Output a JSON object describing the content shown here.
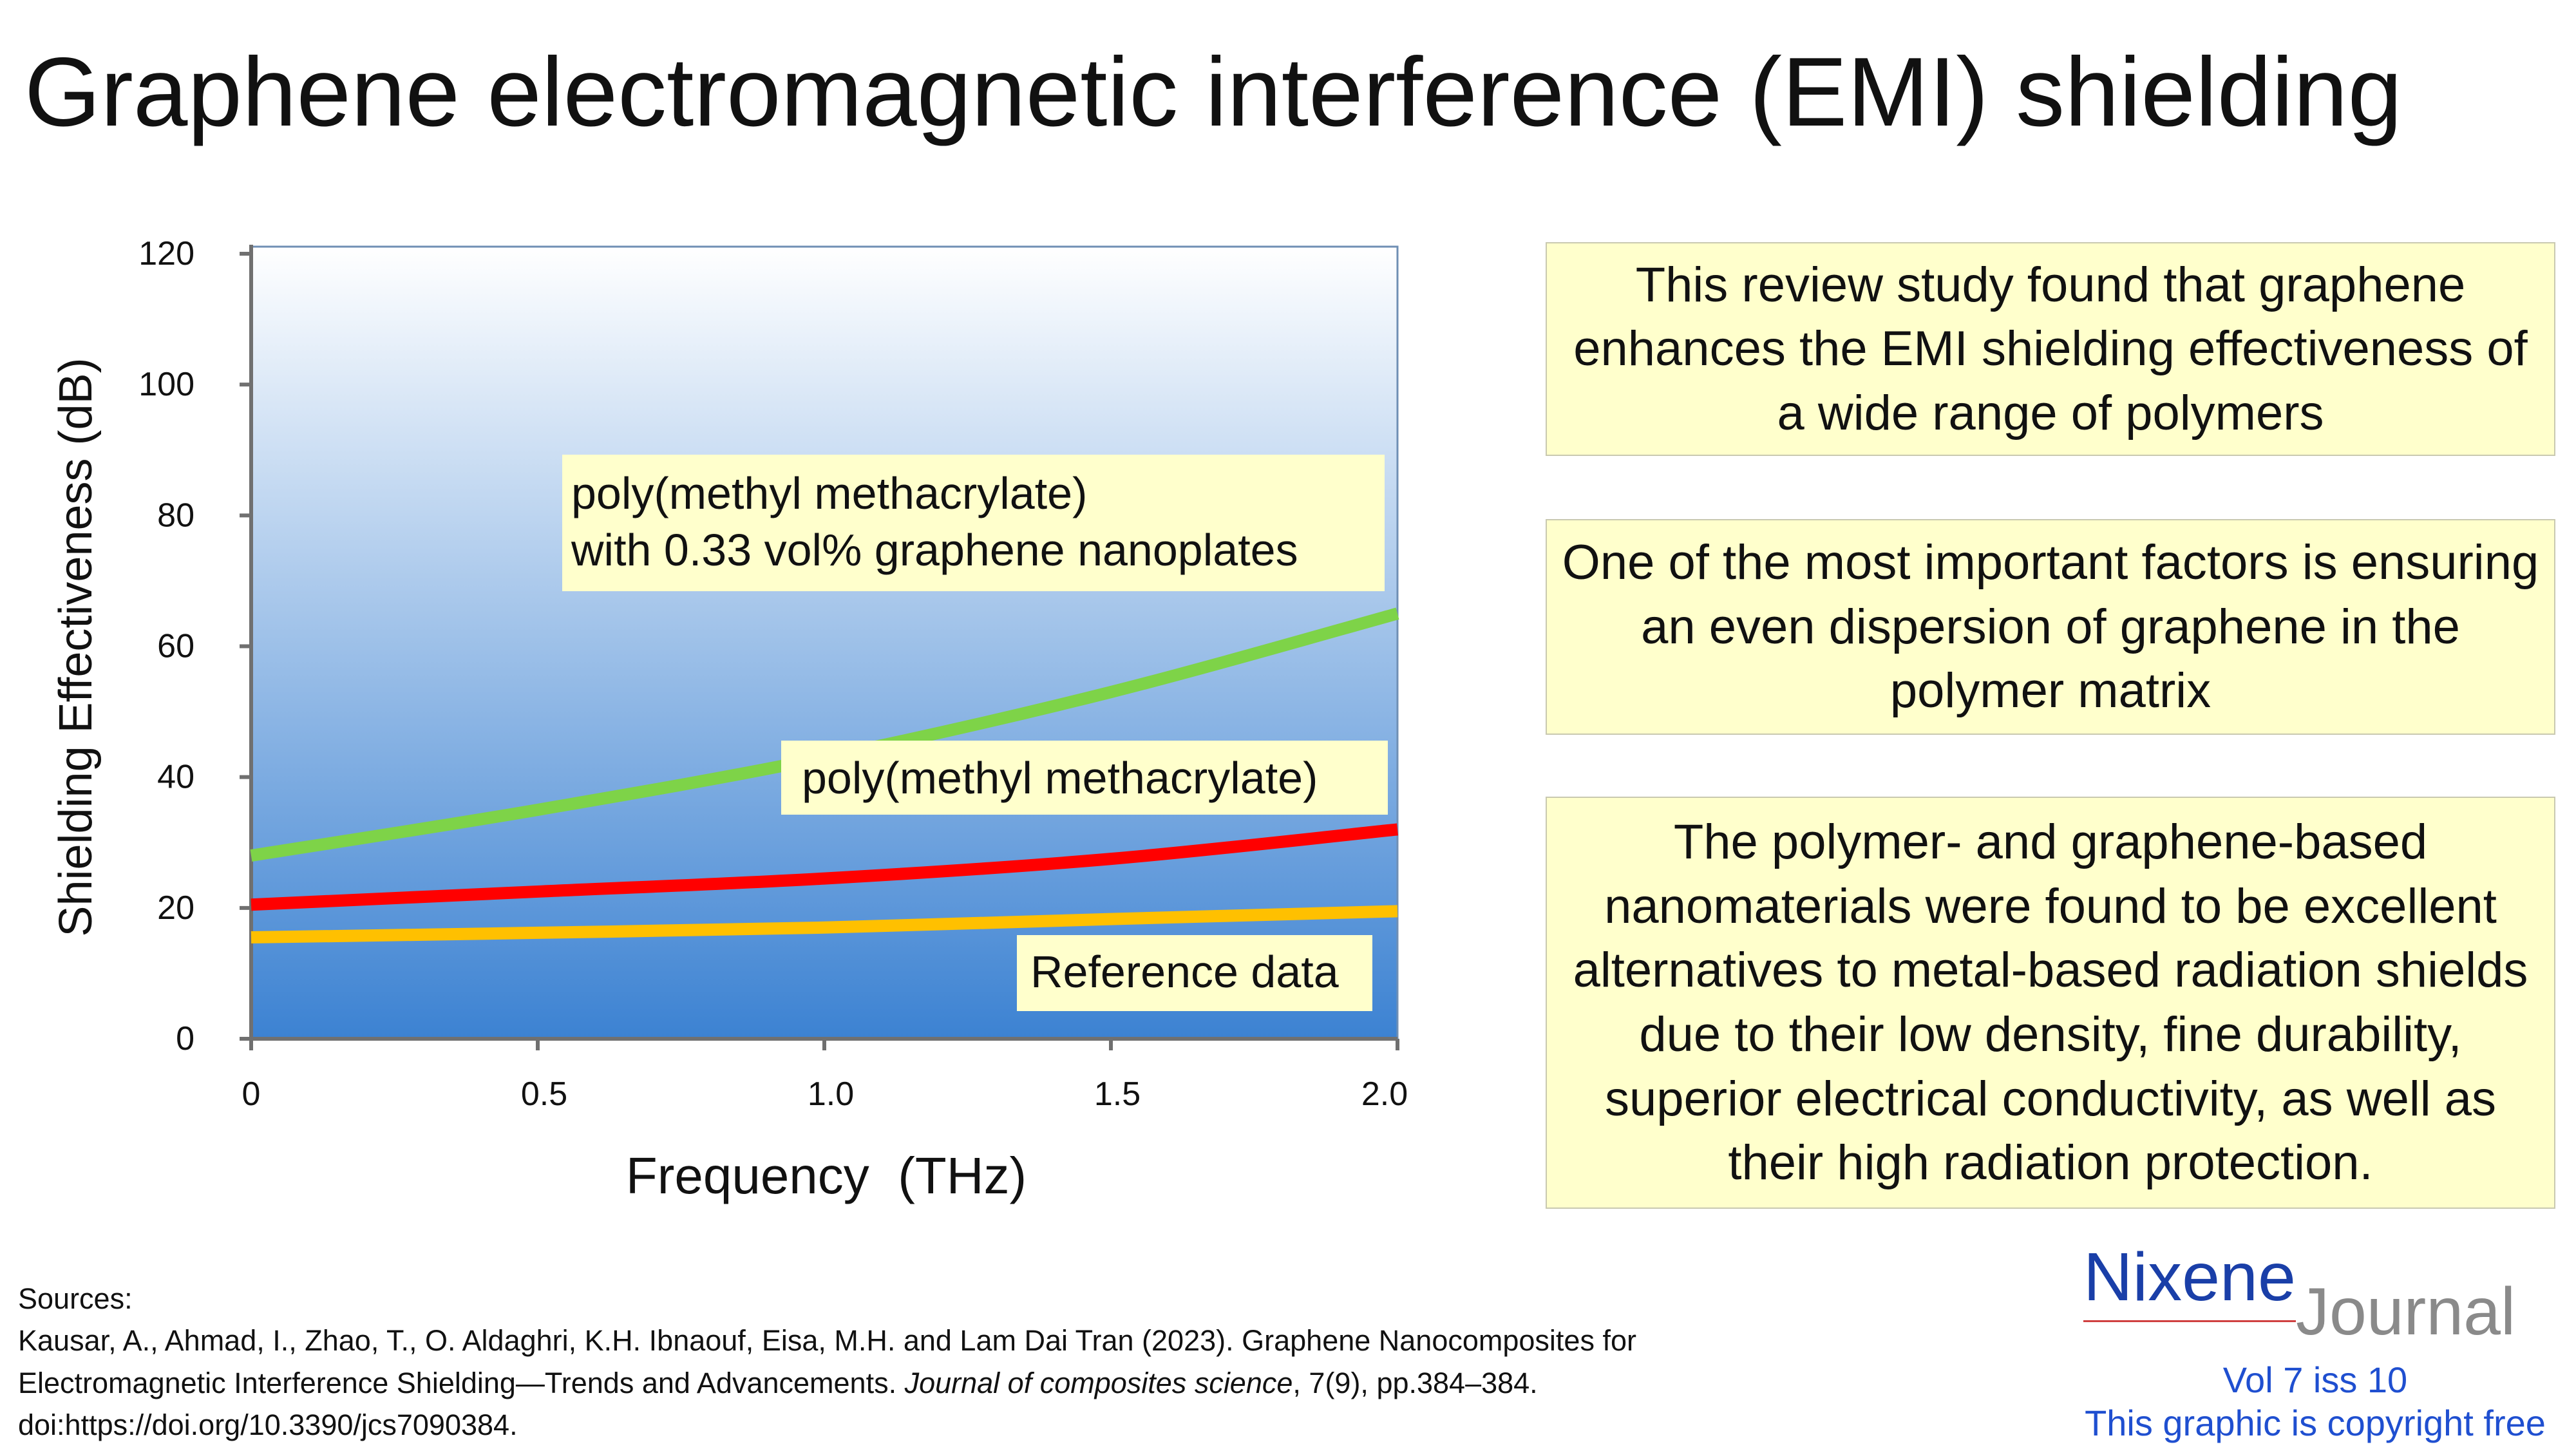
{
  "page_title": "Graphene electromagnetic interference (EMI) shielding",
  "chart_data": {
    "type": "line",
    "title": "",
    "xlabel": "Frequency  (THz)",
    "ylabel": "Shielding Effectiveness  (dB)",
    "xlim": [
      0,
      2.0
    ],
    "ylim": [
      0,
      120
    ],
    "x_ticks": [
      "0",
      "0.5",
      "1.0",
      "1.5",
      "2.0"
    ],
    "x_tick_values": [
      0,
      0.5,
      1.0,
      1.5,
      2.0
    ],
    "y_ticks": [
      "0",
      "20",
      "40",
      "60",
      "80",
      "100",
      "120"
    ],
    "y_tick_values": [
      0,
      20,
      40,
      60,
      80,
      100,
      120
    ],
    "grid": false,
    "series": [
      {
        "name": "poly(methyl methacrylate) with 0.33 vol% graphene nanoplates",
        "color": "#7ed348",
        "x": [
          0,
          0.5,
          1.0,
          1.5,
          2.0
        ],
        "y": [
          28,
          35,
          43,
          53,
          65
        ]
      },
      {
        "name": "poly(methyl methacrylate)",
        "color": "#ff0000",
        "x": [
          0,
          0.5,
          1.0,
          1.5,
          2.0
        ],
        "y": [
          20.5,
          22.5,
          24.5,
          27.5,
          32
        ]
      },
      {
        "name": "Reference data",
        "color": "#ffc000",
        "x": [
          0,
          0.5,
          1.0,
          1.5,
          2.0
        ],
        "y": [
          15.5,
          16.2,
          17,
          18.3,
          19.5
        ]
      }
    ],
    "annotations": {
      "pmma_graphene_line1": "poly(methyl methacrylate)",
      "pmma_graphene_line2": "with 0.33 vol% graphene nanoplates",
      "pmma": "poly(methyl methacrylate)",
      "reference": "Reference data"
    },
    "background_gradient": [
      "#ffffff",
      "#3c82d2"
    ],
    "annotation_fill": "#ffffcc"
  },
  "callouts": {
    "box1": "This review study found that graphene enhances the EMI shielding effectiveness of a wide range of polymers",
    "box2": "One of the most important factors is ensuring an even dispersion of graphene in the polymer matrix",
    "box3": "The polymer- and graphene-based nanomaterials were found to be excellent alternatives to metal-based radiation shields due to their low density, fine durability, superior electrical conductivity, as well as their high radiation protection."
  },
  "sources": {
    "heading": "Sources:",
    "line1": "Kausar, A., Ahmad, I., Zhao, T., O. Aldaghri, K.H. Ibnaouf, Eisa, M.H. and Lam Dai Tran (2023). Graphene Nanocomposites for",
    "line2_plain": "Electromagnetic Interference Shielding—Trends and Advancements. ",
    "line2_journal": "Journal of composites science",
    "line2_tail": ", 7(9), pp.384–384.",
    "line3": "doi:https://doi.org/10.3390/jcs7090384."
  },
  "logo": {
    "brand_first": "Nixene",
    "brand_second": "Journal",
    "volume": "Vol 7 iss 10",
    "copyright": "This graphic is copyright free",
    "brand_color": "#1a3fa8",
    "accent_color": "#1f4fd0"
  }
}
